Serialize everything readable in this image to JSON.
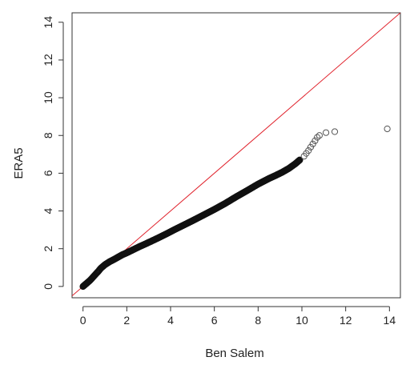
{
  "chart_data": {
    "type": "scatter",
    "title": "",
    "xlabel": "Ben Salem",
    "ylabel": "ERA5",
    "xlim": [
      -0.5,
      14.5
    ],
    "ylim": [
      -0.6,
      14.5
    ],
    "x_ticks": [
      0,
      2,
      4,
      6,
      8,
      10,
      12,
      14
    ],
    "y_ticks": [
      0,
      2,
      4,
      6,
      8,
      10,
      12,
      14
    ],
    "x_tick_labels": [
      "0",
      "2",
      "4",
      "6",
      "8",
      "10",
      "12",
      "14"
    ],
    "y_tick_labels": [
      "0",
      "2",
      "4",
      "6",
      "8",
      "10",
      "12",
      "14"
    ],
    "grid": false,
    "legend": "none",
    "marker": "open-circle",
    "point_color": "#111111",
    "reference_line": {
      "type": "y=x",
      "color": "#e0202a"
    },
    "series": [
      {
        "x": [
          0.0,
          0.05,
          0.1,
          0.15,
          0.2,
          0.3,
          0.4,
          0.5,
          0.6,
          0.7,
          0.8,
          0.9,
          1.0,
          1.2,
          1.4,
          1.6,
          1.8,
          2.0,
          2.3,
          2.6,
          3.0,
          3.4,
          3.8,
          4.2,
          4.6,
          5.0,
          5.5,
          6.0,
          6.5,
          7.0,
          7.5,
          8.0,
          8.5,
          8.8,
          9.1,
          9.4,
          9.7,
          9.9,
          10.1,
          10.2,
          10.3,
          10.4,
          10.5,
          10.6,
          10.7,
          10.8,
          11.1,
          11.5,
          13.9
        ],
        "y": [
          0.0,
          0.05,
          0.1,
          0.15,
          0.2,
          0.3,
          0.42,
          0.55,
          0.68,
          0.8,
          0.95,
          1.05,
          1.15,
          1.3,
          1.42,
          1.55,
          1.68,
          1.78,
          1.95,
          2.12,
          2.33,
          2.55,
          2.78,
          3.02,
          3.25,
          3.48,
          3.78,
          4.08,
          4.4,
          4.75,
          5.08,
          5.42,
          5.72,
          5.88,
          6.05,
          6.25,
          6.5,
          6.7,
          6.9,
          7.05,
          7.2,
          7.38,
          7.55,
          7.72,
          7.9,
          8.0,
          8.15,
          8.2,
          8.35
        ]
      }
    ]
  }
}
